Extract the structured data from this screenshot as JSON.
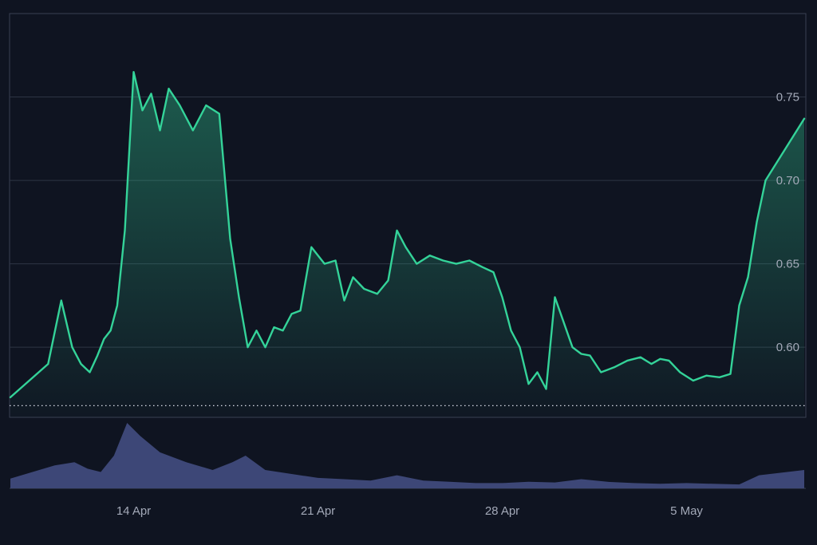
{
  "chart_data": {
    "type": "area",
    "title": "",
    "xlabel": "",
    "ylabel": "",
    "x_ticks": [
      "14 Apr",
      "21 Apr",
      "28 Apr",
      "5 May"
    ],
    "y_ticks": [
      0.6,
      0.65,
      0.7,
      0.75
    ],
    "y_tick_labels": [
      "0.60",
      "0.65",
      "0.70",
      "0.75"
    ],
    "ylim": [
      0.558,
      0.8
    ],
    "grid": true,
    "baseline_value": 0.565,
    "colors": {
      "line": "#34d399",
      "volume": "#3d4777",
      "grid": "#2e3444",
      "baseline": "#d8dce6",
      "tick_label": "#a3a9b8",
      "background": "#0f1421"
    },
    "price_series": {
      "x": [
        "10 Apr",
        "11 Apr",
        "11 Apr",
        "12 Apr",
        "12 Apr",
        "12 Apr",
        "13 Apr",
        "13 Apr",
        "13 Apr",
        "13 Apr",
        "14 Apr",
        "14 Apr",
        "14 Apr",
        "15 Apr",
        "15 Apr",
        "15 Apr",
        "16 Apr",
        "16 Apr",
        "17 Apr",
        "17 Apr",
        "18 Apr",
        "18 Apr",
        "18 Apr",
        "19 Apr",
        "19 Apr",
        "19 Apr",
        "20 Apr",
        "20 Apr",
        "20 Apr",
        "21 Apr",
        "21 Apr",
        "22 Apr",
        "22 Apr",
        "22 Apr",
        "23 Apr",
        "23 Apr",
        "24 Apr",
        "24 Apr",
        "24 Apr",
        "25 Apr",
        "25 Apr",
        "26 Apr",
        "26 Apr",
        "27 Apr",
        "27 Apr",
        "28 Apr",
        "28 Apr",
        "28 Apr",
        "29 Apr",
        "29 Apr",
        "29 Apr",
        "30 Apr",
        "30 Apr",
        "30 Apr",
        "1 May",
        "1 May",
        "1 May",
        "2 May",
        "2 May",
        "3 May",
        "3 May",
        "4 May",
        "4 May",
        "4 May",
        "5 May",
        "5 May",
        "6 May",
        "6 May",
        "7 May",
        "7 May",
        "7 May",
        "8 May",
        "8 May",
        "8 May"
      ],
      "y": [
        0.57,
        0.59,
        0.628,
        0.6,
        0.59,
        0.585,
        0.595,
        0.605,
        0.61,
        0.625,
        0.67,
        0.765,
        0.742,
        0.752,
        0.73,
        0.755,
        0.745,
        0.73,
        0.745,
        0.74,
        0.665,
        0.63,
        0.6,
        0.61,
        0.6,
        0.612,
        0.61,
        0.62,
        0.622,
        0.66,
        0.65,
        0.652,
        0.628,
        0.642,
        0.635,
        0.632,
        0.64,
        0.67,
        0.66,
        0.65,
        0.655,
        0.652,
        0.65,
        0.652,
        0.648,
        0.645,
        0.63,
        0.61,
        0.6,
        0.578,
        0.585,
        0.575,
        0.63,
        0.615,
        0.6,
        0.596,
        0.595,
        0.585,
        0.588,
        0.592,
        0.594,
        0.59,
        0.593,
        0.592,
        0.585,
        0.58,
        0.583,
        0.582,
        0.584,
        0.625,
        0.642,
        0.675,
        0.7,
        0.737
      ]
    },
    "volume_series": {
      "x": [
        "10 Apr",
        "11 Apr",
        "12 Apr",
        "12 Apr",
        "13 Apr",
        "13 Apr",
        "14 Apr",
        "14 Apr",
        "15 Apr",
        "16 Apr",
        "17 Apr",
        "18 Apr",
        "18 Apr",
        "19 Apr",
        "20 Apr",
        "21 Apr",
        "22 Apr",
        "23 Apr",
        "24 Apr",
        "25 Apr",
        "26 Apr",
        "27 Apr",
        "28 Apr",
        "29 Apr",
        "30 Apr",
        "1 May",
        "2 May",
        "3 May",
        "4 May",
        "5 May",
        "6 May",
        "7 May",
        "8 May",
        "8 May"
      ],
      "y": [
        0.15,
        0.35,
        0.4,
        0.3,
        0.25,
        0.5,
        1.0,
        0.8,
        0.55,
        0.4,
        0.28,
        0.4,
        0.5,
        0.28,
        0.22,
        0.16,
        0.14,
        0.12,
        0.2,
        0.12,
        0.1,
        0.08,
        0.08,
        0.1,
        0.09,
        0.14,
        0.1,
        0.08,
        0.07,
        0.08,
        0.07,
        0.06,
        0.2,
        0.28
      ]
    }
  }
}
